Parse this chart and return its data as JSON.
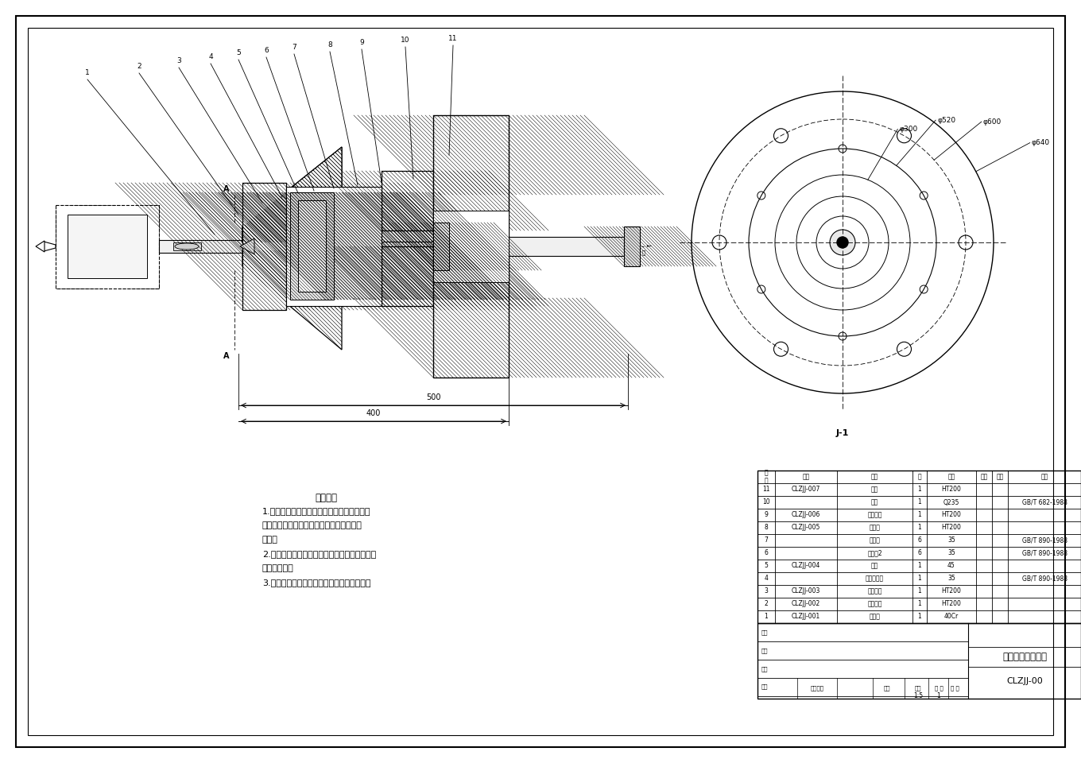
{
  "bg_color": "#ffffff",
  "border_color": "#000000",
  "title": "齿轮轴夹具装配图",
  "drawing_number": "CLZJJ-00",
  "tech_req_title": "技术要求",
  "tech_req_lines": [
    "1.进入装配的零部件及部件（包括外购件，外",
    "协件），均必须具有检验部门的合格证方能",
    "装夹。",
    "2.零件在装配前必须清理和清洗，不得有毛刺，",
    "飞边等现象。",
    "3.装配过程中零件不允许碰磕，划伤和锈蚀。"
  ],
  "bom_rows": [
    [
      "11",
      "CLZJJ-007",
      "拉杆",
      "1",
      "HT200",
      "",
      ""
    ],
    [
      "10",
      "",
      "螺母",
      "1",
      "Q235",
      "",
      "GB/T 682-1988"
    ],
    [
      "9",
      "CLZJJ-006",
      "夹具底座",
      "1",
      "HT200",
      "",
      ""
    ],
    [
      "8",
      "CLZJJ-005",
      "连接套",
      "1",
      "HT200",
      "",
      ""
    ],
    [
      "7",
      "",
      "圆柱销",
      "6",
      "35",
      "",
      "GB/T 890-1988"
    ],
    [
      "6",
      "",
      "圆柱销2",
      "6",
      "35",
      "",
      "GB/T 890-1988"
    ],
    [
      "5",
      "CLZJJ-004",
      "顶尖",
      "1",
      "45",
      "",
      ""
    ],
    [
      "4",
      "",
      "内六角螺钉",
      "1",
      "35",
      "",
      "GB/T 890-1988"
    ],
    [
      "3",
      "CLZJJ-003",
      "弹性底座",
      "1",
      "HT200",
      "",
      ""
    ],
    [
      "2",
      "CLZJJ-002",
      "定位底座",
      "1",
      "HT200",
      "",
      ""
    ],
    [
      "1",
      "CLZJJ-001",
      "齿轮轴",
      "1",
      "40Cr",
      "",
      ""
    ]
  ],
  "view_label_right": "J-1",
  "dim1": "500",
  "dim2": "400",
  "circle_dims": [
    "φ640",
    "φ600",
    "φ520",
    "φ300"
  ],
  "hatch_color": "#000000",
  "line_color": "#000000"
}
